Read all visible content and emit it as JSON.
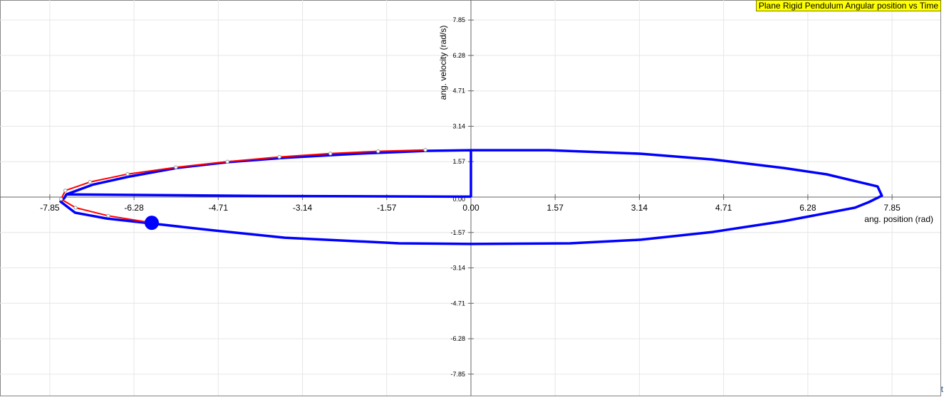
{
  "chart_data": {
    "type": "line",
    "title": "Plane Rigid Pendulum Angular position vs Time",
    "xlabel": "ang. position (rad)",
    "ylabel": "ang. velocity (rad/s)",
    "xlim": [
      -8.78,
      8.78
    ],
    "ylim": [
      -8.78,
      8.78
    ],
    "x_ticks": [
      "-7.85",
      "-6.28",
      "-4.71",
      "-3.14",
      "-1.57",
      "0.00",
      "1.57",
      "3.14",
      "4.71",
      "6.28",
      "7.85"
    ],
    "y_ticks": [
      "7.85",
      "6.28",
      "4.71",
      "3.14",
      "1.57",
      "0.00",
      "-1.57",
      "-3.14",
      "-4.71",
      "-6.28",
      "-7.85"
    ],
    "tick_step": 1.57,
    "grid": true,
    "corner_label": "t",
    "series": [
      {
        "color": "#0000ff",
        "points": [
          [
            0,
            0
          ],
          [
            0,
            2.08
          ],
          [
            1.45,
            2.08
          ],
          [
            3.17,
            1.92
          ],
          [
            4.5,
            1.67
          ],
          [
            5.83,
            1.29
          ],
          [
            6.63,
            1.01
          ],
          [
            7.58,
            0.47
          ],
          [
            7.66,
            0.06
          ],
          [
            7.42,
            -0.22
          ],
          [
            7.16,
            -0.47
          ],
          [
            5.83,
            -1.07
          ],
          [
            4.5,
            -1.55
          ],
          [
            3.17,
            -1.89
          ],
          [
            1.85,
            -2.05
          ],
          [
            0,
            -2.08
          ],
          [
            -1.34,
            -2.05
          ],
          [
            -3.47,
            -1.8
          ],
          [
            -4.79,
            -1.48
          ],
          [
            -5.95,
            -1.17
          ],
          [
            -6.79,
            -0.95
          ],
          [
            -7.38,
            -0.69
          ],
          [
            -7.65,
            -0.2
          ],
          [
            -7.58,
            -0.05
          ],
          [
            -7.54,
            0.12
          ],
          [
            -7.05,
            0.55
          ],
          [
            -6.39,
            0.9
          ],
          [
            -5.46,
            1.3
          ],
          [
            -4.53,
            1.55
          ],
          [
            -3.47,
            1.74
          ],
          [
            -2.14,
            1.92
          ],
          [
            -0.81,
            2.05
          ],
          [
            0,
            2.08
          ]
        ]
      },
      {
        "color": "#0000ff",
        "points": [
          [
            -7.54,
            0.12
          ],
          [
            -4.0,
            0.05
          ],
          [
            0,
            0.02
          ]
        ]
      },
      {
        "color": "#ff0000",
        "markers": true,
        "points": [
          [
            -0.85,
            2.09
          ],
          [
            -1.73,
            2.03
          ],
          [
            -2.62,
            1.93
          ],
          [
            -3.57,
            1.78
          ],
          [
            -4.54,
            1.57
          ],
          [
            -5.5,
            1.32
          ],
          [
            -6.4,
            1.02
          ],
          [
            -7.1,
            0.67
          ],
          [
            -7.56,
            0.29
          ],
          [
            -7.64,
            -0.09
          ],
          [
            -7.37,
            -0.47
          ],
          [
            -6.76,
            -0.83
          ],
          [
            -5.95,
            -1.14
          ]
        ]
      }
    ],
    "current_point": {
      "x": -5.95,
      "y": -1.14,
      "color": "#0000ff"
    }
  }
}
